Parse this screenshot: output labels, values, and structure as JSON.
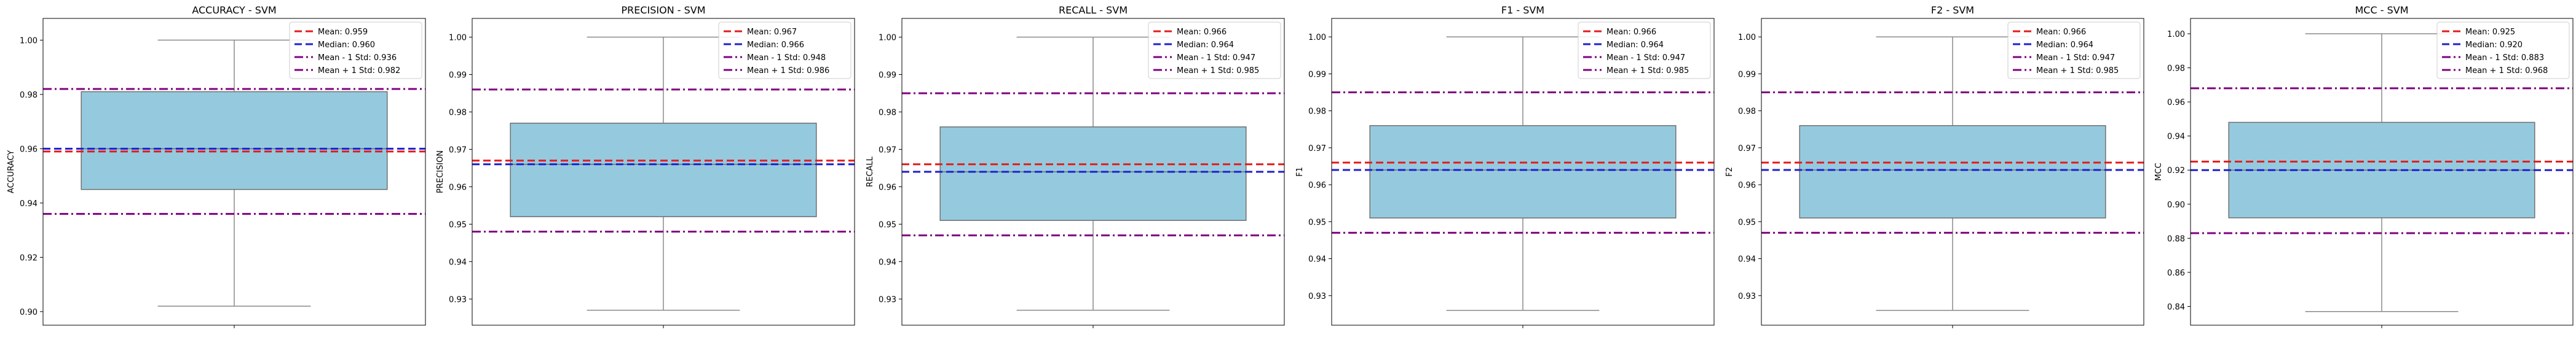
{
  "chart_data": [
    {
      "type": "box",
      "title": "ACCURACY - SVM",
      "ylabel": "ACCURACY",
      "xlabel": "",
      "ylim": [
        0.895,
        1.008
      ],
      "yticks": [
        0.9,
        0.92,
        0.94,
        0.96,
        0.98,
        1.0
      ],
      "ytick_labels": [
        "0.90",
        "0.92",
        "0.94",
        "0.96",
        "0.98",
        "1.00"
      ],
      "box": {
        "whisker_low": 0.902,
        "q1": 0.945,
        "median": 0.96,
        "q3": 0.981,
        "whisker_high": 1.0
      },
      "reference_lines": [
        {
          "kind": "mean",
          "label": "Mean: 0.959",
          "value": 0.959,
          "color": "#e41a1c",
          "style": "dashed"
        },
        {
          "kind": "median",
          "label": "Median: 0.960",
          "value": 0.96,
          "color": "#1f1fcf",
          "style": "dashed"
        },
        {
          "kind": "minus_std",
          "label": "Mean - 1 Std: 0.936",
          "value": 0.936,
          "color": "#800080",
          "style": "dashdot"
        },
        {
          "kind": "plus_std",
          "label": "Mean + 1 Std: 0.982",
          "value": 0.982,
          "color": "#800080",
          "style": "dashdot"
        }
      ],
      "legend_position": "top-right"
    },
    {
      "type": "box",
      "title": "PRECISION - SVM",
      "ylabel": "PRECISION",
      "xlabel": "",
      "ylim": [
        0.923,
        1.005
      ],
      "yticks": [
        0.93,
        0.94,
        0.95,
        0.96,
        0.97,
        0.98,
        0.99,
        1.0
      ],
      "ytick_labels": [
        "0.93",
        "0.94",
        "0.95",
        "0.96",
        "0.97",
        "0.98",
        "0.99",
        "1.00"
      ],
      "box": {
        "whisker_low": 0.927,
        "q1": 0.952,
        "median": 0.966,
        "q3": 0.977,
        "whisker_high": 1.0
      },
      "reference_lines": [
        {
          "kind": "mean",
          "label": "Mean: 0.967",
          "value": 0.967,
          "color": "#e41a1c",
          "style": "dashed"
        },
        {
          "kind": "median",
          "label": "Median: 0.966",
          "value": 0.966,
          "color": "#1f1fcf",
          "style": "dashed"
        },
        {
          "kind": "minus_std",
          "label": "Mean - 1 Std: 0.948",
          "value": 0.948,
          "color": "#800080",
          "style": "dashdot"
        },
        {
          "kind": "plus_std",
          "label": "Mean + 1 Std: 0.986",
          "value": 0.986,
          "color": "#800080",
          "style": "dashdot"
        }
      ],
      "legend_position": "top-right"
    },
    {
      "type": "box",
      "title": "RECALL - SVM",
      "ylabel": "RECALL",
      "xlabel": "",
      "ylim": [
        0.923,
        1.005
      ],
      "yticks": [
        0.93,
        0.94,
        0.95,
        0.96,
        0.97,
        0.98,
        0.99,
        1.0
      ],
      "ytick_labels": [
        "0.93",
        "0.94",
        "0.95",
        "0.96",
        "0.97",
        "0.98",
        "0.99",
        "1.00"
      ],
      "box": {
        "whisker_low": 0.927,
        "q1": 0.951,
        "median": 0.964,
        "q3": 0.976,
        "whisker_high": 1.0
      },
      "reference_lines": [
        {
          "kind": "mean",
          "label": "Mean: 0.966",
          "value": 0.966,
          "color": "#e41a1c",
          "style": "dashed"
        },
        {
          "kind": "median",
          "label": "Median: 0.964",
          "value": 0.964,
          "color": "#1f1fcf",
          "style": "dashed"
        },
        {
          "kind": "minus_std",
          "label": "Mean - 1 Std: 0.947",
          "value": 0.947,
          "color": "#800080",
          "style": "dashdot"
        },
        {
          "kind": "plus_std",
          "label": "Mean + 1 Std: 0.985",
          "value": 0.985,
          "color": "#800080",
          "style": "dashdot"
        }
      ],
      "legend_position": "top-right"
    },
    {
      "type": "box",
      "title": "F1 - SVM",
      "ylabel": "F1",
      "xlabel": "",
      "ylim": [
        0.922,
        1.005
      ],
      "yticks": [
        0.93,
        0.94,
        0.95,
        0.96,
        0.97,
        0.98,
        0.99,
        1.0
      ],
      "ytick_labels": [
        "0.93",
        "0.94",
        "0.95",
        "0.96",
        "0.97",
        "0.98",
        "0.99",
        "1.00"
      ],
      "box": {
        "whisker_low": 0.926,
        "q1": 0.951,
        "median": 0.964,
        "q3": 0.976,
        "whisker_high": 1.0
      },
      "reference_lines": [
        {
          "kind": "mean",
          "label": "Mean: 0.966",
          "value": 0.966,
          "color": "#e41a1c",
          "style": "dashed"
        },
        {
          "kind": "median",
          "label": "Median: 0.964",
          "value": 0.964,
          "color": "#1f1fcf",
          "style": "dashed"
        },
        {
          "kind": "minus_std",
          "label": "Mean - 1 Std: 0.947",
          "value": 0.947,
          "color": "#800080",
          "style": "dashdot"
        },
        {
          "kind": "plus_std",
          "label": "Mean + 1 Std: 0.985",
          "value": 0.985,
          "color": "#800080",
          "style": "dashdot"
        }
      ],
      "legend_position": "top-right"
    },
    {
      "type": "box",
      "title": "F2 - SVM",
      "ylabel": "F2",
      "xlabel": "",
      "ylim": [
        0.922,
        1.005
      ],
      "yticks": [
        0.93,
        0.94,
        0.95,
        0.96,
        0.97,
        0.98,
        0.99,
        1.0
      ],
      "ytick_labels": [
        "0.93",
        "0.94",
        "0.95",
        "0.96",
        "0.97",
        "0.98",
        "0.99",
        "1.00"
      ],
      "box": {
        "whisker_low": 0.926,
        "q1": 0.951,
        "median": 0.964,
        "q3": 0.976,
        "whisker_high": 1.0
      },
      "reference_lines": [
        {
          "kind": "mean",
          "label": "Mean: 0.966",
          "value": 0.966,
          "color": "#e41a1c",
          "style": "dashed"
        },
        {
          "kind": "median",
          "label": "Median: 0.964",
          "value": 0.964,
          "color": "#1f1fcf",
          "style": "dashed"
        },
        {
          "kind": "minus_std",
          "label": "Mean - 1 Std: 0.947",
          "value": 0.947,
          "color": "#800080",
          "style": "dashdot"
        },
        {
          "kind": "plus_std",
          "label": "Mean + 1 Std: 0.985",
          "value": 0.985,
          "color": "#800080",
          "style": "dashdot"
        }
      ],
      "legend_position": "top-right"
    },
    {
      "type": "box",
      "title": "MCC - SVM",
      "ylabel": "MCC",
      "xlabel": "",
      "ylim": [
        0.829,
        1.009
      ],
      "yticks": [
        0.84,
        0.86,
        0.88,
        0.9,
        0.92,
        0.94,
        0.96,
        0.98,
        1.0
      ],
      "ytick_labels": [
        "0.84",
        "0.86",
        "0.88",
        "0.90",
        "0.92",
        "0.94",
        "0.96",
        "0.98",
        "1.00"
      ],
      "box": {
        "whisker_low": 0.837,
        "q1": 0.892,
        "median": 0.92,
        "q3": 0.948,
        "whisker_high": 1.0
      },
      "reference_lines": [
        {
          "kind": "mean",
          "label": "Mean: 0.925",
          "value": 0.925,
          "color": "#e41a1c",
          "style": "dashed"
        },
        {
          "kind": "median",
          "label": "Median: 0.920",
          "value": 0.92,
          "color": "#1f1fcf",
          "style": "dashed"
        },
        {
          "kind": "minus_std",
          "label": "Mean - 1 Std: 0.883",
          "value": 0.883,
          "color": "#800080",
          "style": "dashdot"
        },
        {
          "kind": "plus_std",
          "label": "Mean + 1 Std: 0.968",
          "value": 0.968,
          "color": "#800080",
          "style": "dashdot"
        }
      ],
      "legend_position": "top-right"
    }
  ],
  "colors": {
    "box_fill": "#95cade",
    "box_edge": "#6f6f6f",
    "whisker": "#8a8a8a",
    "axis": "#000000"
  }
}
